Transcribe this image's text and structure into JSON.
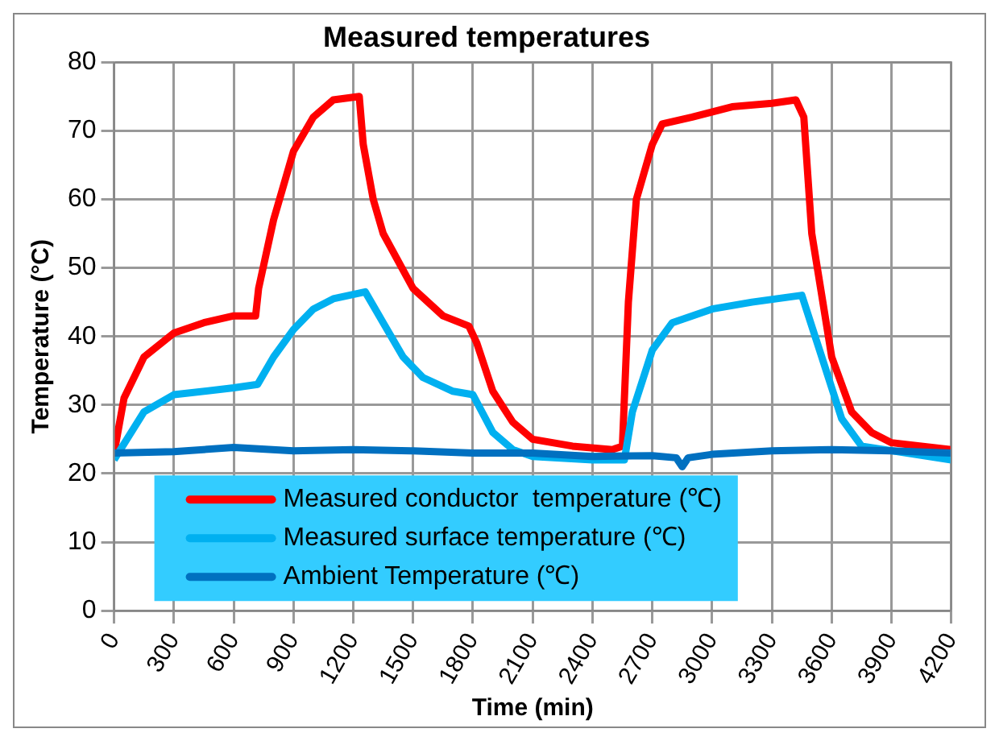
{
  "chart_data": {
    "type": "line",
    "title": "Measured temperatures",
    "xlabel": "Time (min)",
    "ylabel": "Temperature (°C)",
    "xlim": [
      0,
      4200
    ],
    "xticks": [
      0,
      300,
      600,
      900,
      1200,
      1500,
      1800,
      2100,
      2400,
      2700,
      3000,
      3300,
      3600,
      3900,
      4200
    ],
    "ylim": [
      0,
      80
    ],
    "yticks": [
      0,
      10,
      20,
      30,
      40,
      50,
      60,
      70,
      80
    ],
    "grid": true,
    "legend": "bottom",
    "marker": "none",
    "line_style": "solid",
    "series": [
      {
        "name": "Measured conductor  temperature (℃)",
        "color": "#ff0000",
        "x": [
          0,
          50,
          150,
          300,
          450,
          600,
          710,
          725,
          800,
          900,
          1000,
          1100,
          1230,
          1250,
          1300,
          1350,
          1500,
          1650,
          1780,
          1820,
          1900,
          2000,
          2100,
          2300,
          2500,
          2550,
          2580,
          2620,
          2700,
          2750,
          2900,
          3100,
          3300,
          3420,
          3460,
          3500,
          3600,
          3700,
          3800,
          3900,
          4200
        ],
        "values": [
          23,
          31,
          37,
          40.5,
          42,
          43,
          43,
          47,
          57,
          67,
          72,
          74.5,
          75,
          68,
          60,
          55,
          47,
          43,
          41.5,
          39,
          32,
          27.5,
          25,
          24,
          23.5,
          24,
          45,
          60,
          68,
          71,
          72,
          73.5,
          74,
          74.5,
          72,
          55,
          37,
          29,
          26,
          24.5,
          23.5
        ]
      },
      {
        "name": "Measured surface temperature (℃)",
        "color": "#00b0f0",
        "x": [
          0,
          150,
          300,
          600,
          720,
          800,
          900,
          1000,
          1100,
          1260,
          1350,
          1450,
          1550,
          1700,
          1800,
          1900,
          2000,
          2100,
          2400,
          2560,
          2600,
          2700,
          2800,
          3000,
          3200,
          3450,
          3550,
          3650,
          3750,
          4200
        ],
        "values": [
          22,
          29,
          31.5,
          32.5,
          33,
          37,
          41,
          44,
          45.5,
          46.5,
          42,
          37,
          34,
          32,
          31.5,
          26,
          23.5,
          22.5,
          22,
          22,
          29,
          38,
          42,
          44,
          45,
          46,
          37,
          28,
          24,
          22
        ]
      },
      {
        "name": "Ambient Temperature (℃)",
        "color": "#0070c0",
        "x": [
          0,
          300,
          600,
          900,
          1200,
          1500,
          1800,
          2100,
          2400,
          2700,
          2820,
          2850,
          2880,
          3000,
          3300,
          3600,
          3900,
          4200
        ],
        "values": [
          23,
          23.2,
          23.8,
          23.3,
          23.5,
          23.3,
          23,
          23,
          22.5,
          22.6,
          22.3,
          21,
          22.3,
          22.8,
          23.3,
          23.5,
          23.3,
          23
        ]
      }
    ]
  }
}
